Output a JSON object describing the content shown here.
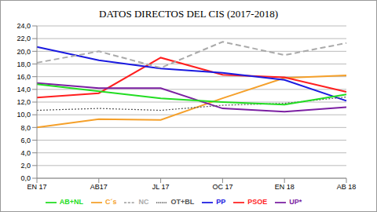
{
  "chart_data": {
    "type": "line",
    "title": "DATOS DIRECTOS DEL CIS (2017-2018)",
    "categories": [
      "EN 17",
      "AB17",
      "JL 17",
      "OC 17",
      "EN 18",
      "AB 18"
    ],
    "series": [
      {
        "name": "C´s",
        "color": "#f5a02a",
        "line_style": "solid",
        "values": [
          8.0,
          9.3,
          9.2,
          12.6,
          15.8,
          16.2
        ]
      },
      {
        "name": "PSOE",
        "color": "#ff1f1f",
        "line_style": "solid",
        "values": [
          12.7,
          13.4,
          19.0,
          16.3,
          15.9,
          13.6
        ]
      },
      {
        "name": "PP",
        "color": "#1a1ae0",
        "line_style": "solid",
        "values": [
          20.7,
          18.6,
          17.3,
          16.6,
          15.5,
          12.2
        ]
      },
      {
        "name": "UP*",
        "color": "#7b1fa2",
        "line_style": "solid",
        "values": [
          15.0,
          14.2,
          14.2,
          11.0,
          10.5,
          11.2
        ]
      },
      {
        "name": "OT+BL",
        "color": "#555555",
        "line_style": "dotted",
        "values": [
          10.7,
          11.0,
          10.7,
          11.5,
          11.8,
          12.8
        ]
      },
      {
        "name": "AB+NL",
        "color": "#22dd22",
        "line_style": "solid",
        "values": [
          14.8,
          13.7,
          12.6,
          12.0,
          11.6,
          13.2
        ]
      },
      {
        "name": "NC",
        "color": "#aaaaaa",
        "line_style": "dashed",
        "values": [
          18.2,
          20.0,
          17.4,
          21.5,
          19.4,
          21.3
        ]
      }
    ],
    "ylim": [
      0,
      24
    ],
    "yticks": [
      {
        "value": 0,
        "label": "0,0"
      },
      {
        "value": 2,
        "label": "2,0"
      },
      {
        "value": 4,
        "label": "4,0"
      },
      {
        "value": 6,
        "label": "6,0"
      },
      {
        "value": 8,
        "label": "8,0"
      },
      {
        "value": 10,
        "label": "10,0"
      },
      {
        "value": 12,
        "label": "12,0"
      },
      {
        "value": 14,
        "label": "14,0"
      },
      {
        "value": 16,
        "label": "16,0"
      },
      {
        "value": 18,
        "label": "18,0"
      },
      {
        "value": 20,
        "label": "20,0"
      },
      {
        "value": 22,
        "label": "22,0"
      },
      {
        "value": 24,
        "label": "24,0"
      }
    ],
    "grid": true,
    "legend": "bottom"
  }
}
